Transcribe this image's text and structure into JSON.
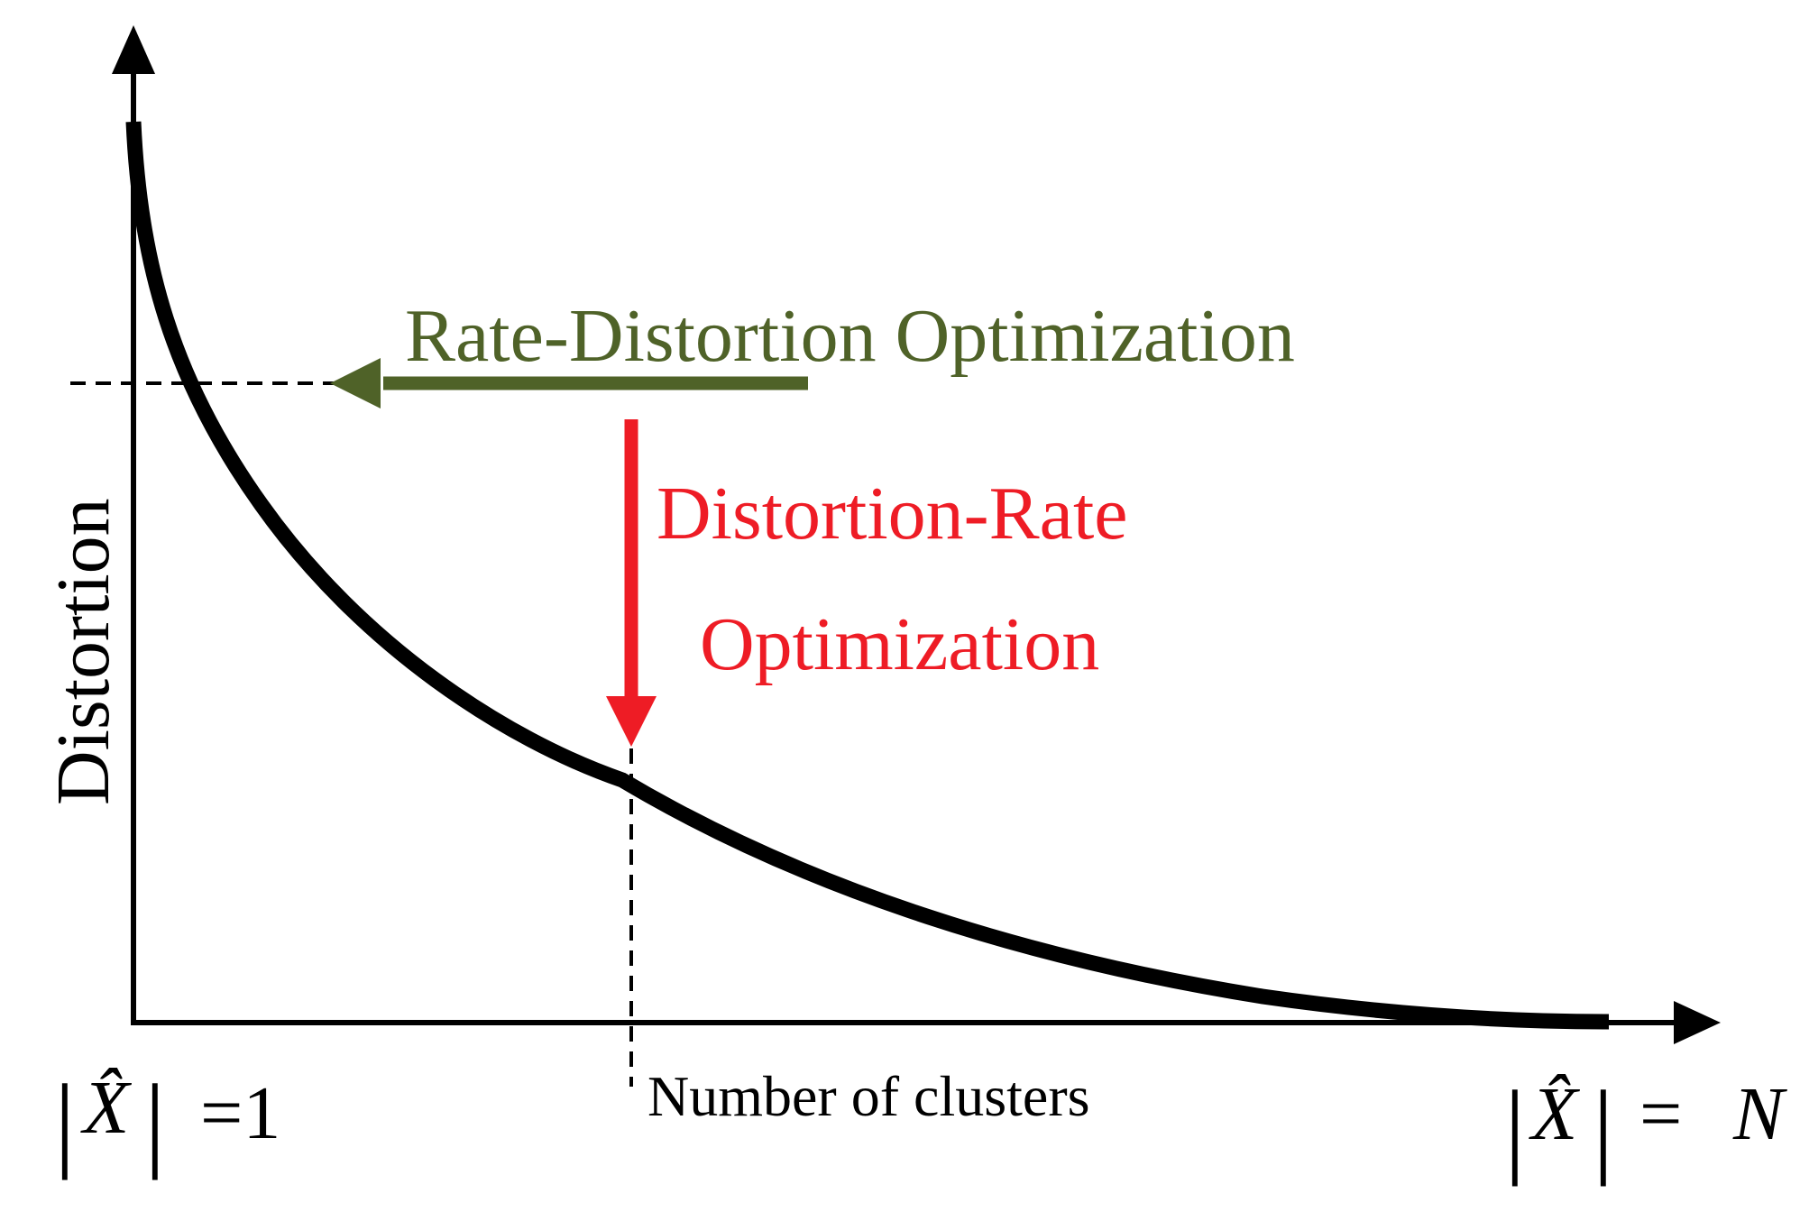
{
  "diagram": {
    "y_axis_label": "Distortion",
    "x_axis_label": "Number of clusters",
    "x_min_label": {
      "abs_open": "|",
      "symbol": "X̂",
      "abs_close": "|",
      "relation": "=1"
    },
    "x_max_label": {
      "abs_open": "|",
      "symbol": "X̂",
      "abs_close": "|",
      "relation": "=",
      "value": "N"
    },
    "rate_distortion_label": "Rate-Distortion Optimization",
    "distortion_rate_label_line1": "Distortion-Rate",
    "distortion_rate_label_line2": "Optimization",
    "colors": {
      "curve": "#000000",
      "axes": "#000000",
      "rate_distortion": "#4f6228",
      "distortion_rate": "#ee1c25"
    }
  }
}
